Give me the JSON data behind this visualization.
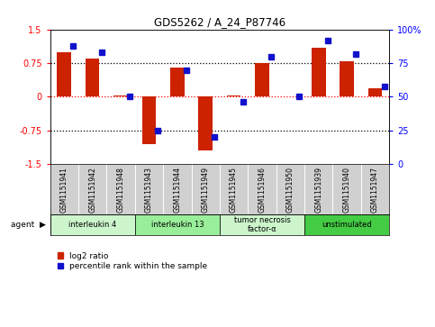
{
  "title": "GDS5262 / A_24_P87746",
  "samples": [
    "GSM1151941",
    "GSM1151942",
    "GSM1151948",
    "GSM1151943",
    "GSM1151944",
    "GSM1151949",
    "GSM1151945",
    "GSM1151946",
    "GSM1151950",
    "GSM1151939",
    "GSM1151940",
    "GSM1151947"
  ],
  "log2_ratio": [
    1.0,
    0.85,
    0.02,
    -1.05,
    0.65,
    -1.2,
    0.02,
    0.76,
    0.0,
    1.1,
    0.8,
    0.2
  ],
  "percentile": [
    88,
    83,
    50,
    25,
    70,
    20,
    46,
    80,
    50,
    92,
    82,
    58
  ],
  "agents": [
    {
      "label": "interleukin 4",
      "start": 0,
      "end": 3
    },
    {
      "label": "interleukin 13",
      "start": 3,
      "end": 6
    },
    {
      "label": "tumor necrosis\nfactor-α",
      "start": 6,
      "end": 9
    },
    {
      "label": "unstimulated",
      "start": 9,
      "end": 12
    }
  ],
  "agent_colors": [
    "#ccf5cc",
    "#99ee99",
    "#ccf5cc",
    "#44cc44"
  ],
  "bar_color_red": "#cc2200",
  "bar_color_blue": "#1111cc",
  "bar_width": 0.5,
  "ylim": [
    -1.5,
    1.5
  ],
  "y_ticks_left": [
    -1.5,
    -0.75,
    0.0,
    0.75,
    1.5
  ],
  "y_ticks_right": [
    0,
    25,
    50,
    75,
    100
  ],
  "bg_color": "#ffffff",
  "plot_bg": "#ffffff",
  "legend_items": [
    "log2 ratio",
    "percentile rank within the sample"
  ]
}
